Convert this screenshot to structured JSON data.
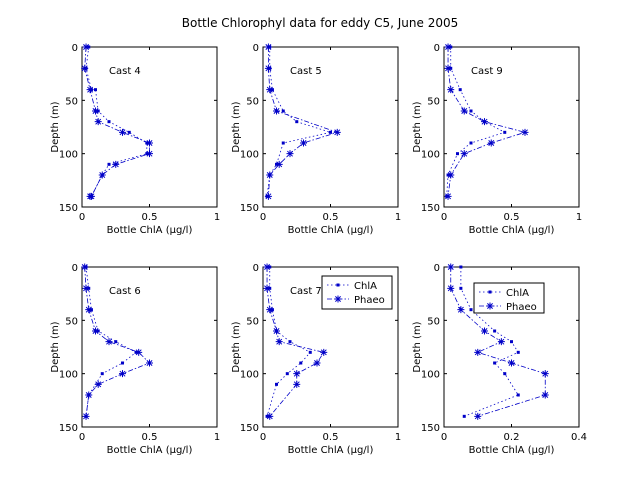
{
  "figure_title": "Bottle Chlorophyl data for eddy C5, June 2005",
  "colors": {
    "series": "#0000c8",
    "axes": "#000000",
    "background": "#ffffff"
  },
  "chart_data": [
    {
      "type": "line",
      "title": "Cast 4",
      "xlabel": "Bottle ChlA (µg/l)",
      "ylabel": "Depth (m)",
      "xlim": [
        0,
        1
      ],
      "ylim": [
        0,
        150
      ],
      "y_reversed": true,
      "xticks": [
        "0",
        "0.5",
        "1"
      ],
      "yticks": [
        "0",
        "50",
        "100",
        "150"
      ],
      "series": [
        {
          "name": "",
          "x": [
            0.05,
            0.03,
            0.07,
            0.1,
            0.12,
            0.2,
            0.35,
            0.48,
            0.48,
            0.2,
            0.15,
            0.07
          ],
          "y": [
            0,
            20,
            40,
            40,
            60,
            70,
            80,
            90,
            100,
            110,
            120,
            140
          ]
        },
        {
          "name": "",
          "x": [
            0.03,
            0.02,
            0.06,
            0.1,
            0.12,
            0.3,
            0.5,
            0.5,
            0.25,
            0.15,
            0.07,
            0.06
          ],
          "y": [
            0,
            20,
            40,
            60,
            70,
            80,
            90,
            100,
            110,
            120,
            140,
            140
          ]
        }
      ]
    },
    {
      "type": "line",
      "title": "Cast 5",
      "xlabel": "Bottle ChlA (µg/l)",
      "ylabel": "Depth (m)",
      "xlim": [
        0,
        1
      ],
      "ylim": [
        0,
        150
      ],
      "y_reversed": true,
      "xticks": [
        "0",
        "0.5",
        "1"
      ],
      "yticks": [
        "0",
        "50",
        "100",
        "150"
      ],
      "series": [
        {
          "name": "",
          "x": [
            0.05,
            0.05,
            0.07,
            0.15,
            0.25,
            0.5,
            0.15,
            0.1,
            0.05,
            0.03
          ],
          "y": [
            0,
            20,
            40,
            60,
            70,
            80,
            90,
            110,
            120,
            140
          ]
        },
        {
          "name": "",
          "x": [
            0.04,
            0.04,
            0.05,
            0.1,
            0.55,
            0.3,
            0.2,
            0.12,
            0.05,
            0.04
          ],
          "y": [
            0,
            20,
            40,
            60,
            80,
            90,
            100,
            110,
            120,
            140
          ]
        }
      ]
    },
    {
      "type": "line",
      "title": "Cast 9",
      "xlabel": "Bottle ChlA (µg/l)",
      "ylabel": "Depth (m)",
      "xlim": [
        0,
        1
      ],
      "ylim": [
        0,
        150
      ],
      "y_reversed": true,
      "xticks": [
        "0",
        "0.5",
        "1"
      ],
      "yticks": [
        "0",
        "50",
        "100",
        "150"
      ],
      "series": [
        {
          "name": "",
          "x": [
            0.05,
            0.05,
            0.12,
            0.2,
            0.3,
            0.45,
            0.2,
            0.1,
            0.03,
            0.02
          ],
          "y": [
            0,
            20,
            40,
            60,
            70,
            80,
            90,
            100,
            120,
            140
          ]
        },
        {
          "name": "",
          "x": [
            0.03,
            0.03,
            0.05,
            0.15,
            0.3,
            0.6,
            0.35,
            0.15,
            0.05,
            0.03
          ],
          "y": [
            0,
            20,
            40,
            60,
            70,
            80,
            90,
            100,
            120,
            140
          ]
        }
      ]
    },
    {
      "type": "line",
      "title": "Cast 6",
      "xlabel": "Bottle ChlA (µg/l)",
      "ylabel": "Depth (m)",
      "xlim": [
        0,
        1
      ],
      "ylim": [
        0,
        150
      ],
      "y_reversed": true,
      "xticks": [
        "0",
        "0.5",
        "1"
      ],
      "yticks": [
        "0",
        "50",
        "100",
        "150"
      ],
      "series": [
        {
          "name": "",
          "x": [
            0.03,
            0.05,
            0.07,
            0.12,
            0.25,
            0.4,
            0.3,
            0.15,
            0.05,
            0.03
          ],
          "y": [
            0,
            20,
            40,
            60,
            70,
            80,
            90,
            100,
            120,
            140
          ]
        },
        {
          "name": "",
          "x": [
            0.02,
            0.03,
            0.05,
            0.1,
            0.2,
            0.42,
            0.5,
            0.3,
            0.12,
            0.05,
            0.03
          ],
          "y": [
            0,
            20,
            40,
            60,
            70,
            80,
            90,
            100,
            110,
            120,
            140
          ]
        }
      ]
    },
    {
      "type": "line",
      "title": "Cast 7",
      "xlabel": "Bottle ChlA (µg/l)",
      "ylabel": "Depth (m)",
      "xlim": [
        0,
        1
      ],
      "ylim": [
        0,
        150
      ],
      "y_reversed": true,
      "xticks": [
        "0",
        "0.5",
        "1"
      ],
      "yticks": [
        "0",
        "50",
        "100",
        "150"
      ],
      "legend": [
        "ChlA",
        "Phaeo"
      ],
      "legend_position": "top-right",
      "series": [
        {
          "name": "ChlA",
          "x": [
            0.05,
            0.05,
            0.07,
            0.1,
            0.2,
            0.35,
            0.28,
            0.18,
            0.1,
            0.03
          ],
          "y": [
            0,
            20,
            40,
            60,
            70,
            80,
            90,
            100,
            110,
            140
          ]
        },
        {
          "name": "Phaeo",
          "x": [
            0.03,
            0.03,
            0.05,
            0.1,
            0.12,
            0.45,
            0.4,
            0.25,
            0.25,
            0.05
          ],
          "y": [
            0,
            20,
            40,
            60,
            70,
            80,
            90,
            100,
            110,
            140
          ]
        }
      ]
    },
    {
      "type": "line",
      "title": "",
      "xlabel": "Bottle ChlA (µg/l)",
      "ylabel": "Depth (m)",
      "xlim": [
        0,
        0.4
      ],
      "ylim": [
        0,
        150
      ],
      "y_reversed": true,
      "xticks": [
        "0",
        "0.2",
        "0.4"
      ],
      "yticks": [
        "0",
        "50",
        "100",
        "150"
      ],
      "legend": [
        "ChlA",
        "Phaeo"
      ],
      "legend_position": "top-right",
      "series": [
        {
          "name": "ChlA",
          "x": [
            0.05,
            0.05,
            0.08,
            0.15,
            0.2,
            0.22,
            0.15,
            0.18,
            0.22,
            0.06
          ],
          "y": [
            0,
            20,
            40,
            60,
            70,
            80,
            90,
            100,
            120,
            140
          ]
        },
        {
          "name": "Phaeo",
          "x": [
            0.02,
            0.02,
            0.05,
            0.12,
            0.17,
            0.1,
            0.2,
            0.3,
            0.3,
            0.1
          ],
          "y": [
            0,
            20,
            40,
            60,
            70,
            80,
            90,
            100,
            120,
            140
          ]
        }
      ]
    }
  ]
}
